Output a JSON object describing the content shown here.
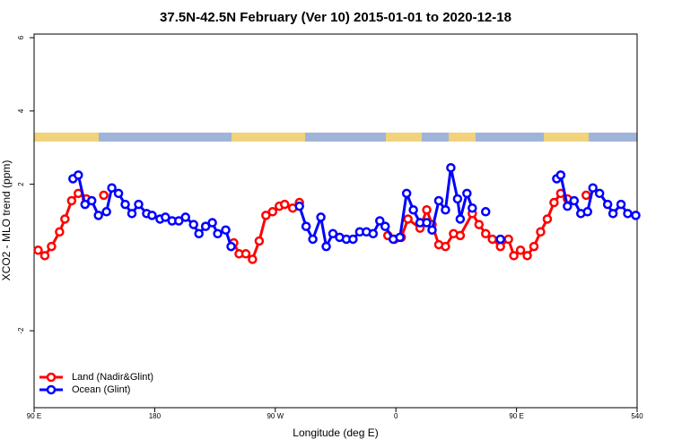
{
  "chart_data": {
    "type": "line",
    "title": "37.5N-42.5N February (Ver 10)   2015-01-01 to 2020-12-18",
    "x_label": "Longitude (deg E)",
    "y_label": "XCO2 - MLO trend (ppm)",
    "xlim": [
      90,
      540
    ],
    "xticks": [
      {
        "value": 90,
        "label": "90 E"
      },
      180,
      {
        "value": 270,
        "label": "90 W"
      },
      {
        "value": 360,
        "label": "0"
      },
      {
        "value": 450,
        "label": "90 E"
      },
      540
    ],
    "ylim": [
      -4.1,
      6.1
    ],
    "yticks": [
      -2,
      2,
      4,
      6
    ],
    "legend": "bottomleft",
    "series": [
      {
        "name": "Land (Nadir&Glint)",
        "color": "#ff0000",
        "x": [
          93,
          98,
          103,
          109,
          113,
          118,
          123,
          129,
          null,
          142,
          null,
          239,
          243,
          248,
          253,
          258,
          263,
          268,
          273,
          277,
          283,
          288,
          null,
          354,
          359,
          364,
          369,
          378,
          383,
          387,
          392,
          397,
          403,
          408,
          417,
          422,
          427,
          432,
          438,
          444,
          448,
          453,
          458,
          463,
          468,
          473,
          478,
          483,
          488,
          null,
          502
        ],
        "values": [
          0.2,
          0.05,
          0.3,
          0.7,
          1.05,
          1.55,
          1.75,
          1.6,
          null,
          1.7,
          null,
          0.4,
          0.1,
          0.1,
          -0.05,
          0.45,
          1.15,
          1.25,
          1.4,
          1.45,
          1.35,
          1.5,
          null,
          0.6,
          0.5,
          0.55,
          1.05,
          0.8,
          1.3,
          0.9,
          0.35,
          0.3,
          0.65,
          0.6,
          1.2,
          0.9,
          0.65,
          0.5,
          0.3,
          0.5,
          0.05,
          0.2,
          0.05,
          0.3,
          0.7,
          1.05,
          1.5,
          1.75,
          1.6,
          null,
          1.7
        ]
      },
      {
        "name": "Ocean (Glint)",
        "color": "#0000ff",
        "x": [
          119,
          123,
          128,
          133,
          138,
          144,
          148,
          153,
          158,
          163,
          168,
          174,
          178,
          184,
          188,
          193,
          198,
          203,
          209,
          213,
          218,
          223,
          227,
          233,
          237,
          null,
          288,
          293,
          298,
          304,
          308,
          313,
          318,
          323,
          328,
          333,
          338,
          343,
          348,
          352,
          358,
          363,
          368,
          373,
          378,
          383,
          387,
          392,
          397,
          401,
          406,
          408,
          413,
          417,
          null,
          427,
          null,
          438,
          null,
          480,
          483,
          488,
          493,
          498,
          503,
          507,
          512,
          518,
          522,
          528,
          533,
          539
        ],
        "values": [
          2.15,
          2.25,
          1.45,
          1.55,
          1.15,
          1.25,
          1.9,
          1.75,
          1.45,
          1.2,
          1.45,
          1.2,
          1.15,
          1.05,
          1.1,
          1.0,
          1.0,
          1.1,
          0.9,
          0.65,
          0.85,
          0.95,
          0.65,
          0.75,
          0.3,
          null,
          1.4,
          0.85,
          0.5,
          1.1,
          0.3,
          0.65,
          0.55,
          0.5,
          0.5,
          0.7,
          0.7,
          0.65,
          1.0,
          0.85,
          0.5,
          0.55,
          1.75,
          1.3,
          0.95,
          0.95,
          0.75,
          1.55,
          1.3,
          2.45,
          1.6,
          1.05,
          1.75,
          1.35,
          null,
          1.25,
          null,
          0.5,
          null,
          2.15,
          2.25,
          1.4,
          1.55,
          1.2,
          1.25,
          1.9,
          1.75,
          1.45,
          1.2,
          1.45,
          1.2,
          1.15
        ]
      }
    ]
  }
}
